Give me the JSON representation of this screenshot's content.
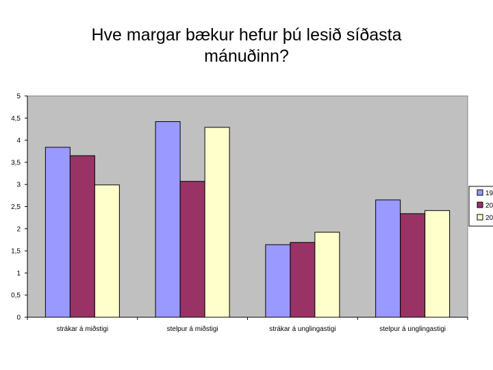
{
  "title": {
    "line1": "Hve margar bækur hefur þú lesið síðasta",
    "line2": "mánuðinn?"
  },
  "chart_data": {
    "type": "bar",
    "title": "Hve margar bækur hefur þú lesið síðasta mánuðinn?",
    "categories": [
      "strákar á miðstigi",
      "stelpur á miðstigi",
      "strákar á unglingastigi",
      "stelpur á unglingastigi"
    ],
    "series": [
      {
        "name": "19",
        "color": "#9999ff",
        "values": [
          3.84,
          4.42,
          1.64,
          2.65
        ]
      },
      {
        "name": "20",
        "color": "#993366",
        "values": [
          3.65,
          3.07,
          1.69,
          2.34
        ]
      },
      {
        "name": "20",
        "color": "#ffffcc",
        "values": [
          2.99,
          4.29,
          1.92,
          2.41
        ]
      }
    ],
    "yticks": [
      "0",
      "0,5",
      "1",
      "1,5",
      "2",
      "2,5",
      "3",
      "3,5",
      "4",
      "4,5",
      "5"
    ],
    "ylim": [
      0,
      5
    ],
    "plot_background": "#c0c0c0",
    "grid": false,
    "legend": "right"
  }
}
